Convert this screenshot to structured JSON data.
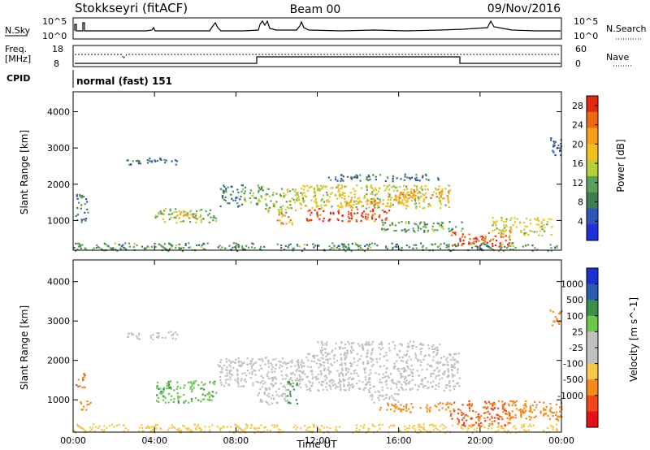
{
  "header": {
    "station": "Stokkseyri (fitACF)",
    "beam": "Beam 00",
    "date": "09/Nov/2016"
  },
  "noise_panel": {
    "left_label": "N.Sky",
    "right_label": "N.Search",
    "left_ticks": [
      "10^5",
      "10^0"
    ],
    "right_ticks": [
      "10^5",
      "10^0"
    ]
  },
  "freq_panel": {
    "left_label_1": "Freq.",
    "left_label_2": "[MHz]",
    "right_label": "Nave",
    "left_ticks": [
      "18",
      "8"
    ],
    "right_ticks": [
      "60",
      "0"
    ]
  },
  "cpid": {
    "label": "CPID",
    "value": "normal (fast) 151"
  },
  "colors": {
    "power_scale": [
      "#1f2fd9",
      "#2d55b8",
      "#3f7f4f",
      "#5aa05a",
      "#b8cf3a",
      "#f2c01e",
      "#f5a018",
      "#ee6a12",
      "#e02b10"
    ],
    "velocity_scale": [
      "#e8101a",
      "#f04818",
      "#f58a1d",
      "#f5c84a",
      "#c0c0c0",
      "#c0c0c0",
      "#6cc84a",
      "#3a8f4a",
      "#2a5cb0",
      "#1e2fd0"
    ]
  },
  "chart_data": [
    {
      "type": "heatmap",
      "name": "power",
      "ylabel": "Slant Range [km]",
      "xlabel": "",
      "x_ticks": [
        "00:00",
        "04:00",
        "08:00",
        "12:00",
        "16:00",
        "20:00",
        "00:00"
      ],
      "y_ticks": [
        "1000",
        "2000",
        "3000",
        "4000"
      ],
      "ylim": [
        180,
        4550
      ],
      "xlim_hours": [
        0,
        24
      ],
      "colorbar": {
        "label": "Power [dB]",
        "ticks": [
          "4",
          "8",
          "12",
          "16",
          "20",
          "24",
          "28"
        ],
        "range": [
          0,
          30
        ]
      },
      "regions": [
        {
          "t": [
            2.6,
            5.1
          ],
          "r": [
            2550,
            2750
          ],
          "v": 7
        },
        {
          "t": [
            0.1,
            0.7
          ],
          "r": [
            950,
            1750
          ],
          "v": 8
        },
        {
          "t": [
            4.0,
            7.0
          ],
          "r": [
            950,
            1350
          ],
          "v": 14
        },
        {
          "t": [
            5.0,
            6.0
          ],
          "r": [
            1050,
            1250
          ],
          "v": 21
        },
        {
          "t": [
            7.2,
            8.3
          ],
          "r": [
            1400,
            2000
          ],
          "v": 9
        },
        {
          "t": [
            8.3,
            9.3
          ],
          "r": [
            1450,
            2000
          ],
          "v": 12
        },
        {
          "t": [
            9.4,
            11.0
          ],
          "r": [
            1200,
            1900
          ],
          "v": 14
        },
        {
          "t": [
            10.0,
            10.8
          ],
          "r": [
            900,
            1200
          ],
          "v": 22
        },
        {
          "t": [
            11.0,
            18.5
          ],
          "r": [
            1350,
            2000
          ],
          "v": 16
        },
        {
          "t": [
            11.4,
            15.5
          ],
          "r": [
            1000,
            1350
          ],
          "v": 27
        },
        {
          "t": [
            13.0,
            16.5
          ],
          "r": [
            1400,
            1750
          ],
          "v": 20
        },
        {
          "t": [
            16.0,
            18.5
          ],
          "r": [
            1600,
            1900
          ],
          "v": 22
        },
        {
          "t": [
            15.0,
            19.2
          ],
          "r": [
            700,
            1000
          ],
          "v": 11
        },
        {
          "t": [
            18.5,
            21.5
          ],
          "r": [
            300,
            700
          ],
          "v": 27
        },
        {
          "t": [
            20.5,
            23.5
          ],
          "r": [
            600,
            1100
          ],
          "v": 16
        },
        {
          "t": [
            0.0,
            23.8
          ],
          "r": [
            180,
            400
          ],
          "v": 10
        },
        {
          "t": [
            12.5,
            18.0
          ],
          "r": [
            2100,
            2300
          ],
          "v": 7
        },
        {
          "t": [
            23.4,
            24.0
          ],
          "r": [
            2800,
            3300
          ],
          "v": 6
        }
      ]
    },
    {
      "type": "heatmap",
      "name": "velocity",
      "ylabel": "Slant Range [km]",
      "xlabel": "Time UT",
      "x_ticks": [
        "00:00",
        "04:00",
        "08:00",
        "12:00",
        "16:00",
        "20:00",
        "00:00"
      ],
      "y_ticks": [
        "1000",
        "2000",
        "3000",
        "4000"
      ],
      "ylim": [
        180,
        4550
      ],
      "xlim_hours": [
        0,
        24
      ],
      "colorbar": {
        "label": "Velocity [m s^-1]",
        "ticks": [
          "1000",
          "500",
          "100",
          "25",
          "-25",
          "-100",
          "-500",
          "-1000"
        ],
        "range": [
          -1000,
          1000
        ]
      },
      "regions": [
        {
          "t": [
            2.6,
            5.1
          ],
          "r": [
            2550,
            2750
          ],
          "v": 0
        },
        {
          "t": [
            0.1,
            0.6
          ],
          "r": [
            1300,
            1700
          ],
          "v": -500
        },
        {
          "t": [
            0.3,
            0.9
          ],
          "r": [
            750,
            1000
          ],
          "v": -300
        },
        {
          "t": [
            4.0,
            7.0
          ],
          "r": [
            950,
            1500
          ],
          "v": 80
        },
        {
          "t": [
            7.0,
            11.5
          ],
          "r": [
            1350,
            2100
          ],
          "v": 0
        },
        {
          "t": [
            9.0,
            10.5
          ],
          "r": [
            900,
            1350
          ],
          "v": 0
        },
        {
          "t": [
            10.5,
            11.0
          ],
          "r": [
            900,
            1500
          ],
          "v": 150
        },
        {
          "t": [
            11.0,
            19.0
          ],
          "r": [
            1250,
            2200
          ],
          "v": 0
        },
        {
          "t": [
            14.5,
            16.0
          ],
          "r": [
            950,
            1250
          ],
          "v": 0
        },
        {
          "t": [
            15.0,
            18.5
          ],
          "r": [
            700,
            950
          ],
          "v": -300
        },
        {
          "t": [
            18.5,
            21.5
          ],
          "r": [
            350,
            1000
          ],
          "v": -600
        },
        {
          "t": [
            21.0,
            24.0
          ],
          "r": [
            500,
            1000
          ],
          "v": -200
        },
        {
          "t": [
            0.0,
            23.8
          ],
          "r": [
            180,
            400
          ],
          "v": -50
        },
        {
          "t": [
            12.0,
            18.0
          ],
          "r": [
            2200,
            2500
          ],
          "v": 0
        },
        {
          "t": [
            23.4,
            24.0
          ],
          "r": [
            2900,
            3300
          ],
          "v": -200
        }
      ]
    }
  ]
}
